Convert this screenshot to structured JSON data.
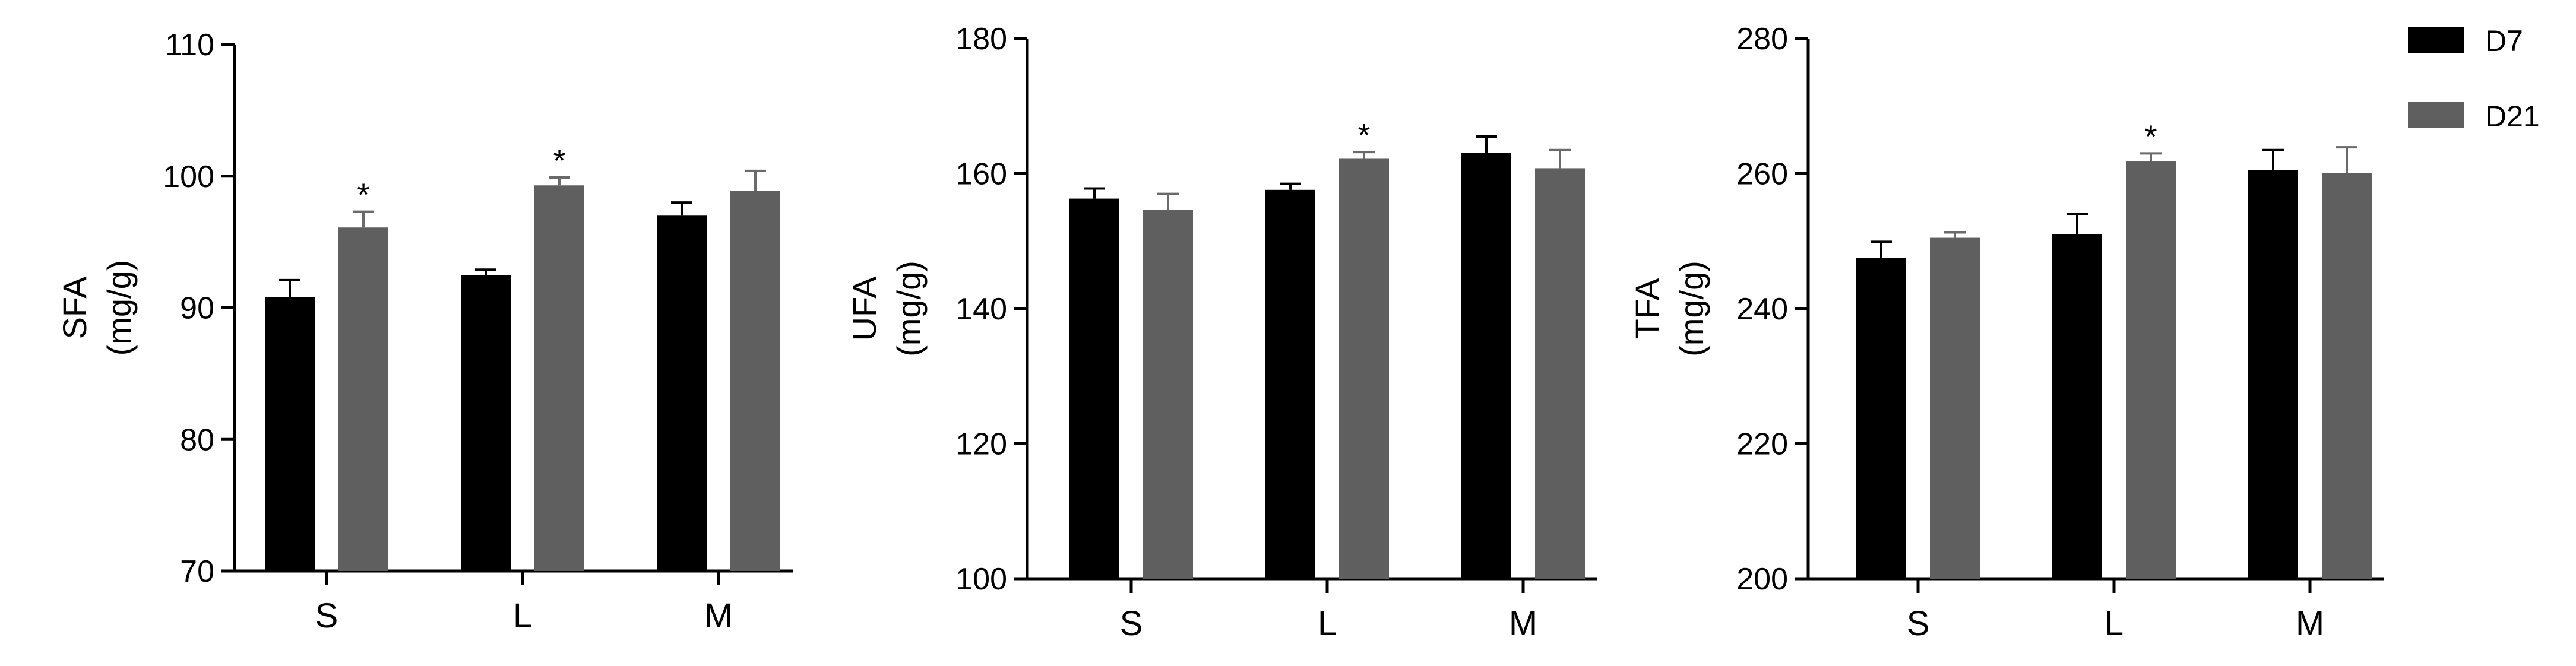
{
  "legend": [
    {
      "label": "D7",
      "color": "#000000"
    },
    {
      "label": "D21",
      "color": "#5f5f5f"
    }
  ],
  "chart_data": [
    {
      "type": "bar",
      "ylabel_line1": "SFA",
      "ylabel_line2": "(mg/g)",
      "categories": [
        "S",
        "L",
        "M"
      ],
      "ylim": [
        70,
        110
      ],
      "yticks": [
        70,
        80,
        90,
        100,
        110
      ],
      "series": [
        {
          "name": "D7",
          "color": "#000000",
          "values": [
            90.8,
            92.5,
            97.0
          ],
          "errors": [
            1.3,
            0.4,
            1.0
          ]
        },
        {
          "name": "D21",
          "color": "#5f5f5f",
          "values": [
            96.1,
            99.3,
            98.9
          ],
          "errors": [
            1.2,
            0.6,
            1.5
          ]
        }
      ],
      "significance": [
        {
          "series": 1,
          "category": 0,
          "mark": "*"
        },
        {
          "series": 1,
          "category": 1,
          "mark": "*"
        }
      ]
    },
    {
      "type": "bar",
      "ylabel_line1": "UFA",
      "ylabel_line2": "(mg/g)",
      "categories": [
        "S",
        "L",
        "M"
      ],
      "ylim": [
        100,
        180
      ],
      "yticks": [
        100,
        120,
        140,
        160,
        180
      ],
      "series": [
        {
          "name": "D7",
          "color": "#000000",
          "values": [
            156.3,
            157.6,
            163.1
          ],
          "errors": [
            1.5,
            0.9,
            2.4
          ]
        },
        {
          "name": "D21",
          "color": "#5f5f5f",
          "values": [
            154.6,
            162.2,
            160.8
          ],
          "errors": [
            2.4,
            1.0,
            2.7
          ]
        }
      ],
      "significance": [
        {
          "series": 1,
          "category": 1,
          "mark": "*"
        }
      ]
    },
    {
      "type": "bar",
      "ylabel_line1": "TFA",
      "ylabel_line2": "(mg/g)",
      "categories": [
        "S",
        "L",
        "M"
      ],
      "ylim": [
        200,
        280
      ],
      "yticks": [
        200,
        220,
        240,
        260,
        280
      ],
      "series": [
        {
          "name": "D7",
          "color": "#000000",
          "values": [
            247.5,
            251.0,
            260.5
          ],
          "errors": [
            2.4,
            3.0,
            3.0
          ]
        },
        {
          "name": "D21",
          "color": "#5f5f5f",
          "values": [
            250.5,
            261.8,
            260.1
          ],
          "errors": [
            0.8,
            1.2,
            3.8
          ]
        }
      ],
      "significance": [
        {
          "series": 1,
          "category": 1,
          "mark": "*"
        }
      ]
    }
  ]
}
